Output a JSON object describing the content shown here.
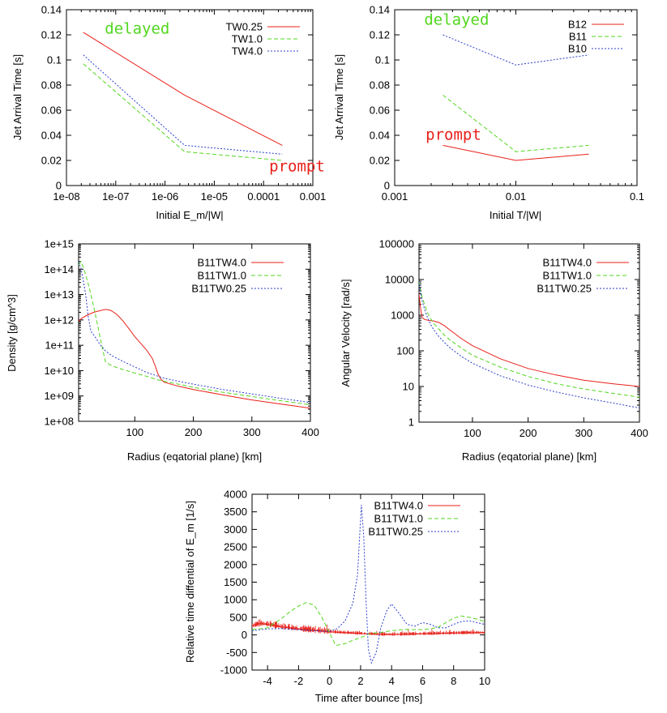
{
  "colors": {
    "red": "#e8201a",
    "green": "#52d61f",
    "blue": "#2c3ecb",
    "frame": "#000000"
  },
  "chart_data": [
    {
      "id": "p1",
      "type": "line",
      "xlabel": "Initial E_m/|W|",
      "ylabel": "Jet Arrival Time [s]",
      "xscale": "log",
      "xlim": [
        1e-08,
        0.001
      ],
      "ylim": [
        0,
        0.14
      ],
      "xticks": [
        1e-08,
        1e-07,
        1e-06,
        1e-05,
        0.0001,
        0.001
      ],
      "xtick_labels": [
        "1e-08",
        "1e-07",
        "1e-06",
        "1e-05",
        "0.0001",
        "0.001"
      ],
      "yticks": [
        0,
        0.02,
        0.04,
        0.06,
        0.08,
        0.1,
        0.12,
        0.14
      ],
      "ytick_labels": [
        "0",
        "0.02",
        "0.04",
        "0.06",
        "0.08",
        "0.1",
        "0.12",
        "0.14"
      ],
      "legend_position": "top-right",
      "annotations": [
        {
          "text": "delayed",
          "x": 6e-08,
          "y": 0.121,
          "color": "green"
        },
        {
          "text": "prompt",
          "x": 0.00013,
          "y": 0.0112,
          "color": "red"
        }
      ],
      "series": [
        {
          "name": "TW0.25",
          "color": "red",
          "dash": "solid",
          "x": [
            2.2e-08,
            2.5e-06,
            0.00024
          ],
          "y": [
            0.122,
            0.072,
            0.032
          ]
        },
        {
          "name": "TW1.0",
          "color": "green",
          "dash": "long",
          "x": [
            2.2e-08,
            2.5e-06,
            0.00024
          ],
          "y": [
            0.097,
            0.027,
            0.02
          ]
        },
        {
          "name": "TW4.0",
          "color": "blue",
          "dash": "dot",
          "x": [
            2.2e-08,
            2.5e-06,
            0.00024
          ],
          "y": [
            0.104,
            0.032,
            0.025
          ]
        }
      ]
    },
    {
      "id": "p2",
      "type": "line",
      "xlabel": "Initial T/|W|",
      "ylabel": "Jet Arrival Time [s]",
      "xscale": "log",
      "xlim": [
        0.001,
        0.1
      ],
      "ylim": [
        0,
        0.14
      ],
      "xticks": [
        0.001,
        0.01,
        0.1
      ],
      "xtick_labels": [
        "0.001",
        "0.01",
        "0.1"
      ],
      "yticks": [
        0,
        0.02,
        0.04,
        0.06,
        0.08,
        0.1,
        0.12,
        0.14
      ],
      "ytick_labels": [
        "0",
        "0.02",
        "0.04",
        "0.06",
        "0.08",
        "0.1",
        "0.12",
        "0.14"
      ],
      "legend_position": "top-right",
      "annotations": [
        {
          "text": "delayed",
          "x": 0.00175,
          "y": 0.128,
          "color": "green"
        },
        {
          "text": "prompt",
          "x": 0.0018,
          "y": 0.0365,
          "color": "red"
        }
      ],
      "series": [
        {
          "name": "B12",
          "color": "red",
          "dash": "solid",
          "x": [
            0.0025,
            0.01,
            0.04
          ],
          "y": [
            0.032,
            0.02,
            0.025
          ]
        },
        {
          "name": "B11",
          "color": "green",
          "dash": "long",
          "x": [
            0.0025,
            0.01,
            0.04
          ],
          "y": [
            0.072,
            0.027,
            0.032
          ]
        },
        {
          "name": "B10",
          "color": "blue",
          "dash": "dot",
          "x": [
            0.0025,
            0.01,
            0.04
          ],
          "y": [
            0.12,
            0.096,
            0.104
          ]
        }
      ]
    },
    {
      "id": "p3",
      "type": "line",
      "xlabel": "Radius (eqatorial plane) [km]",
      "ylabel": "Density [g/cm^3]",
      "yscale": "log",
      "xlim": [
        4,
        400
      ],
      "ylim": [
        100000000.0,
        1000000000000000.0
      ],
      "xticks": [
        100,
        200,
        300,
        400
      ],
      "xtick_labels": [
        "100",
        "200",
        "300",
        "400"
      ],
      "yticks": [
        100000000.0,
        1000000000.0,
        10000000000.0,
        100000000000.0,
        1000000000000.0,
        10000000000000.0,
        100000000000000.0,
        1000000000000000.0
      ],
      "ytick_labels": [
        "1e+08",
        "1e+09",
        "1e+10",
        "1e+11",
        "1e+12",
        "1e+13",
        "1e+14",
        "1e+15"
      ],
      "legend_position": "top-right",
      "series": [
        {
          "name": "B11TW4.0",
          "color": "red",
          "dash": "solid",
          "x": [
            4,
            10,
            20,
            30,
            40,
            50,
            55,
            60,
            70,
            80,
            90,
            100,
            110,
            120,
            130,
            135,
            140,
            145,
            150,
            175,
            200,
            250,
            300,
            350,
            400
          ],
          "y": [
            900000000000.0,
            1200000000000.0,
            1600000000000.0,
            2000000000000.0,
            2300000000000.0,
            2600000000000.0,
            2500000000000.0,
            2300000000000.0,
            1600000000000.0,
            900000000000.0,
            450000000000.0,
            220000000000.0,
            120000000000.0,
            65000000000.0,
            30000000000.0,
            15000000000.0,
            7000000000.0,
            4500000000.0,
            3500000000.0,
            2400000000.0,
            1800000000.0,
            1100000000.0,
            700000000.0,
            480000000.0,
            330000000.0
          ]
        },
        {
          "name": "B11TW1.0",
          "color": "green",
          "dash": "long",
          "x": [
            4,
            8,
            12,
            16,
            20,
            25,
            30,
            35,
            40,
            45,
            50,
            60,
            70,
            80,
            100,
            120,
            140,
            150,
            175,
            200,
            250,
            300,
            350,
            400
          ],
          "y": [
            150000000000000.0,
            200000000000000.0,
            120000000000000.0,
            60000000000000.0,
            28000000000000.0,
            10000000000000.0,
            3200000000000.0,
            900000000000.0,
            250000000000.0,
            70000000000.0,
            22000000000.0,
            16000000000.0,
            13000000000.0,
            11000000000.0,
            8000000000.0,
            6000000000.0,
            4300000000.0,
            3800000000.0,
            2900000000.0,
            2200000000.0,
            1400000000.0,
            950000000.0,
            650000000.0,
            450000000.0
          ]
        },
        {
          "name": "B11TW0.25",
          "color": "blue",
          "dash": "dot",
          "x": [
            4,
            8,
            12,
            16,
            20,
            25,
            30,
            35,
            40,
            50,
            60,
            80,
            100,
            120,
            140,
            150,
            175,
            200,
            250,
            300,
            350,
            400
          ],
          "y": [
            200000000000000.0,
            110000000000000.0,
            35000000000000.0,
            10000000000000.0,
            1500000000000.0,
            350000000000.0,
            250000000000.0,
            170000000000.0,
            110000000000.0,
            60000000000.0,
            40000000000.0,
            23000000000.0,
            14000000000.0,
            8500000000.0,
            6000000000.0,
            5000000000.0,
            3800000000.0,
            2900000000.0,
            1800000000.0,
            1200000000.0,
            800000000.0,
            550000000.0
          ]
        }
      ]
    },
    {
      "id": "p4",
      "type": "line",
      "xlabel": "Radius (eqatorial plane) [km]",
      "ylabel": "Angular Velocity [rad/s]",
      "yscale": "log",
      "xlim": [
        4,
        400
      ],
      "ylim": [
        1,
        100000
      ],
      "xticks": [
        100,
        200,
        300,
        400
      ],
      "xtick_labels": [
        "100",
        "200",
        "300",
        "400"
      ],
      "yticks": [
        1,
        10,
        100,
        1000,
        10000,
        100000
      ],
      "ytick_labels": [
        "1",
        "10",
        "100",
        "1000",
        "10000",
        "100000"
      ],
      "legend_position": "top-right",
      "series": [
        {
          "name": "B11TW4.0",
          "color": "red",
          "dash": "solid",
          "x": [
            4,
            6,
            8,
            10,
            14,
            20,
            25,
            30,
            40,
            50,
            60,
            80,
            100,
            150,
            200,
            250,
            300,
            350,
            400
          ],
          "y": [
            4000,
            2000,
            1200,
            850,
            760,
            720,
            700,
            690,
            620,
            500,
            380,
            220,
            140,
            60,
            32,
            21,
            15,
            12,
            10
          ]
        },
        {
          "name": "B11TW1.0",
          "color": "green",
          "dash": "long",
          "x": [
            4,
            6,
            8,
            10,
            15,
            20,
            25,
            30,
            40,
            50,
            60,
            80,
            100,
            150,
            200,
            250,
            300,
            350,
            400
          ],
          "y": [
            9000,
            6000,
            4200,
            3000,
            1800,
            1100,
            800,
            600,
            400,
            270,
            200,
            120,
            75,
            35,
            19,
            12,
            8.5,
            6.5,
            5
          ]
        },
        {
          "name": "B11TW0.25",
          "color": "blue",
          "dash": "dot",
          "x": [
            4,
            6,
            8,
            10,
            15,
            20,
            25,
            30,
            40,
            50,
            60,
            80,
            100,
            150,
            200,
            250,
            300,
            350,
            400
          ],
          "y": [
            9000,
            5500,
            3500,
            2400,
            1300,
            800,
            550,
            400,
            250,
            170,
            120,
            70,
            45,
            20,
            11,
            7,
            4.8,
            3.5,
            2.5
          ]
        }
      ]
    },
    {
      "id": "p5",
      "type": "line",
      "xlabel": "Time after bounce [ms]",
      "ylabel": "Relative time diffential of E_m [1/s]",
      "xlim": [
        -5,
        10
      ],
      "ylim": [
        -1000,
        4000
      ],
      "xticks": [
        -4,
        -2,
        0,
        2,
        4,
        6,
        8,
        10
      ],
      "xtick_labels": [
        "-4",
        "-2",
        "0",
        "2",
        "4",
        "6",
        "8",
        "10"
      ],
      "yticks": [
        -1000,
        -500,
        0,
        500,
        1000,
        1500,
        2000,
        2500,
        3000,
        3500,
        4000
      ],
      "ytick_labels": [
        "-1000",
        "-500",
        "0",
        "500",
        "1000",
        "1500",
        "2000",
        "2500",
        "3000",
        "3500",
        "4000"
      ],
      "legend_position": "top-right",
      "series": [
        {
          "name": "B11TW4.0",
          "color": "red",
          "dash": "solid",
          "noisy": true,
          "x": [
            -5,
            -4.5,
            -4,
            -3,
            -2,
            -1,
            0,
            1,
            2,
            3,
            4,
            5,
            6,
            7,
            8,
            9,
            10
          ],
          "y": [
            250,
            320,
            300,
            220,
            170,
            130,
            90,
            60,
            40,
            20,
            10,
            20,
            30,
            40,
            50,
            60,
            60
          ]
        },
        {
          "name": "B11TW1.0",
          "color": "green",
          "dash": "long",
          "x": [
            -5,
            -4,
            -3.5,
            -3,
            -2.5,
            -2,
            -1.5,
            -1,
            -0.5,
            0,
            0.4,
            1,
            1.5,
            2,
            2.5,
            3,
            3.5,
            4,
            4.5,
            5,
            5.5,
            6,
            6.5,
            7,
            7.5,
            8,
            8.5,
            9,
            9.5,
            10
          ],
          "y": [
            150,
            200,
            350,
            500,
            680,
            820,
            920,
            850,
            500,
            50,
            -300,
            -250,
            -150,
            -80,
            20,
            60,
            80,
            120,
            140,
            160,
            150,
            150,
            170,
            220,
            350,
            480,
            540,
            500,
            450,
            380
          ]
        },
        {
          "name": "B11TW0.25",
          "color": "blue",
          "dash": "dot",
          "x": [
            -5,
            -4,
            -3,
            -2,
            -1,
            0,
            0.5,
            1,
            1.5,
            1.8,
            2.05,
            2.2,
            2.35,
            2.5,
            2.7,
            3,
            3.3,
            3.7,
            4,
            4.5,
            5,
            5.5,
            6,
            6.5,
            7,
            7.5,
            8,
            8.5,
            9,
            9.5,
            10
          ],
          "y": [
            120,
            170,
            180,
            150,
            120,
            100,
            180,
            400,
            900,
            1700,
            3700,
            2800,
            1000,
            -400,
            -800,
            -500,
            200,
            700,
            880,
            600,
            300,
            250,
            350,
            300,
            200,
            200,
            300,
            380,
            400,
            350,
            300
          ]
        }
      ]
    }
  ]
}
